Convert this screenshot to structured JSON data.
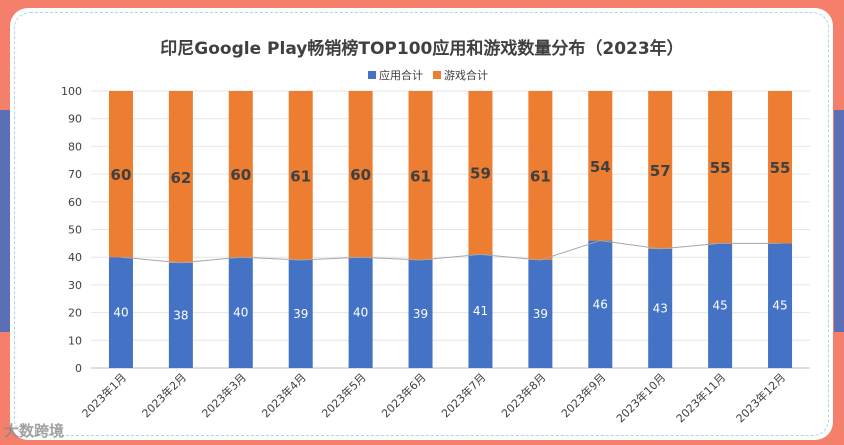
{
  "chart_data": {
    "type": "bar",
    "stacked": true,
    "title": "印尼Google Play畅销榜TOP100应用和游戏数量分布（2023年）",
    "categories": [
      "2023年1月",
      "2023年2月",
      "2023年3月",
      "2023年4月",
      "2023年5月",
      "2023年6月",
      "2023年7月",
      "2023年8月",
      "2023年9月",
      "2023年10月",
      "2023年11月",
      "2023年12月"
    ],
    "series": [
      {
        "name": "应用合计",
        "color": "#4472c4",
        "values": [
          40,
          38,
          40,
          39,
          40,
          39,
          41,
          39,
          46,
          43,
          45,
          45
        ]
      },
      {
        "name": "游戏合计",
        "color": "#ed7d31",
        "values": [
          60,
          62,
          60,
          61,
          60,
          61,
          59,
          61,
          54,
          57,
          55,
          55
        ]
      }
    ],
    "ylim": [
      0,
      100
    ],
    "yticks": [
      0,
      10,
      20,
      30,
      40,
      50,
      60,
      70,
      80,
      90,
      100
    ],
    "grid": true,
    "legend": "top-center",
    "trend_line": "应用合计"
  },
  "watermark": "大数跨境"
}
